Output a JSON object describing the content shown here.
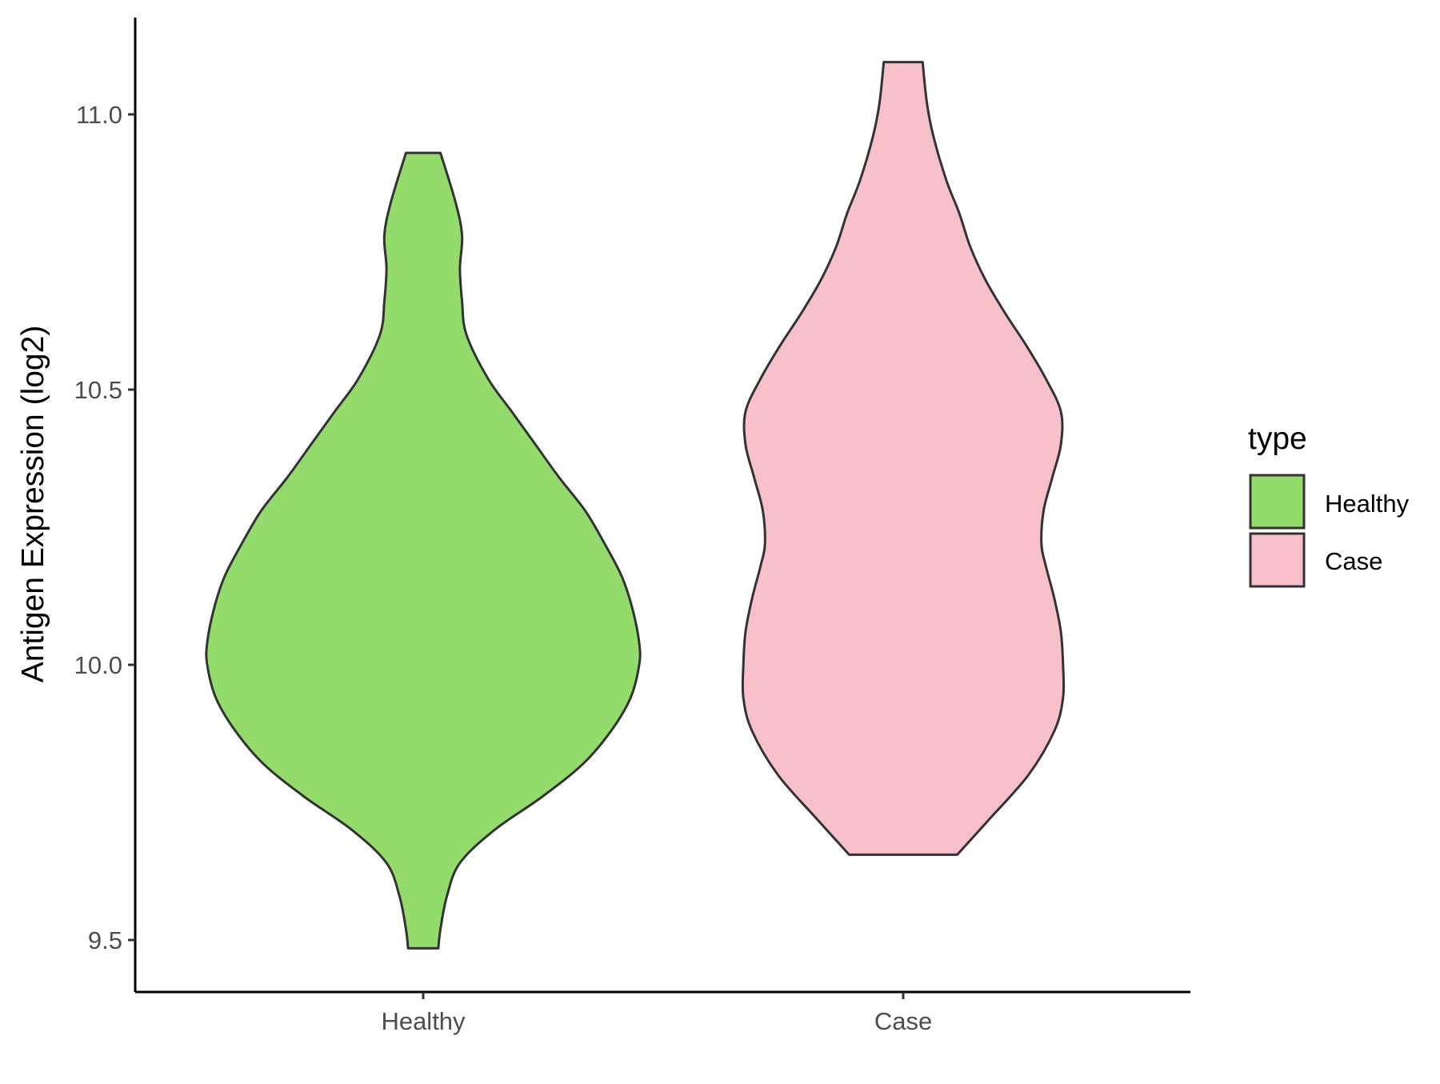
{
  "chart_data": {
    "type": "violin",
    "title": "",
    "xlabel": "",
    "ylabel": "Antigen Expression (log2)",
    "ylim": [
      9.44,
      11.19
    ],
    "yticks": [
      "9.5",
      "10.0",
      "10.5",
      "11.0"
    ],
    "ytick_values": [
      9.5,
      10.0,
      10.5,
      11.0
    ],
    "categories": [
      "Healthy",
      "Case"
    ],
    "grid": false,
    "legend": {
      "title": "type",
      "placement": "right",
      "entries": [
        {
          "label": "Healthy",
          "color": "#93dc6b"
        },
        {
          "label": "Case",
          "color": "#f7c0cb"
        }
      ]
    },
    "outline_color": "#333333",
    "series": [
      {
        "category": "Healthy",
        "color": "#93dc6b",
        "min": 9.485,
        "max": 10.93,
        "density_profile": [
          {
            "y": 9.485,
            "w": 0.07
          },
          {
            "y": 9.52,
            "w": 0.08
          },
          {
            "y": 9.58,
            "w": 0.11
          },
          {
            "y": 9.64,
            "w": 0.17
          },
          {
            "y": 9.7,
            "w": 0.33
          },
          {
            "y": 9.76,
            "w": 0.55
          },
          {
            "y": 9.82,
            "w": 0.74
          },
          {
            "y": 9.88,
            "w": 0.87
          },
          {
            "y": 9.94,
            "w": 0.96
          },
          {
            "y": 10.0,
            "w": 1.0
          },
          {
            "y": 10.04,
            "w": 1.0
          },
          {
            "y": 10.1,
            "w": 0.97
          },
          {
            "y": 10.16,
            "w": 0.92
          },
          {
            "y": 10.22,
            "w": 0.84
          },
          {
            "y": 10.28,
            "w": 0.75
          },
          {
            "y": 10.34,
            "w": 0.63
          },
          {
            "y": 10.4,
            "w": 0.52
          },
          {
            "y": 10.46,
            "w": 0.41
          },
          {
            "y": 10.52,
            "w": 0.3
          },
          {
            "y": 10.6,
            "w": 0.2
          },
          {
            "y": 10.66,
            "w": 0.18
          },
          {
            "y": 10.72,
            "w": 0.17
          },
          {
            "y": 10.78,
            "w": 0.18
          },
          {
            "y": 10.84,
            "w": 0.15
          },
          {
            "y": 10.93,
            "w": 0.08
          }
        ]
      },
      {
        "category": "Case",
        "color": "#f7c0cb",
        "min": 9.655,
        "max": 11.095,
        "density_profile": [
          {
            "y": 9.655,
            "w": 0.25
          },
          {
            "y": 9.72,
            "w": 0.4
          },
          {
            "y": 9.8,
            "w": 0.58
          },
          {
            "y": 9.88,
            "w": 0.7
          },
          {
            "y": 9.94,
            "w": 0.74
          },
          {
            "y": 10.0,
            "w": 0.74
          },
          {
            "y": 10.06,
            "w": 0.73
          },
          {
            "y": 10.12,
            "w": 0.7
          },
          {
            "y": 10.18,
            "w": 0.66
          },
          {
            "y": 10.22,
            "w": 0.64
          },
          {
            "y": 10.28,
            "w": 0.65
          },
          {
            "y": 10.34,
            "w": 0.69
          },
          {
            "y": 10.4,
            "w": 0.73
          },
          {
            "y": 10.46,
            "w": 0.73
          },
          {
            "y": 10.52,
            "w": 0.66
          },
          {
            "y": 10.58,
            "w": 0.57
          },
          {
            "y": 10.64,
            "w": 0.47
          },
          {
            "y": 10.7,
            "w": 0.38
          },
          {
            "y": 10.76,
            "w": 0.31
          },
          {
            "y": 10.82,
            "w": 0.26
          },
          {
            "y": 10.88,
            "w": 0.2
          },
          {
            "y": 10.96,
            "w": 0.14
          },
          {
            "y": 11.02,
            "w": 0.11
          },
          {
            "y": 11.095,
            "w": 0.09
          }
        ]
      }
    ]
  }
}
